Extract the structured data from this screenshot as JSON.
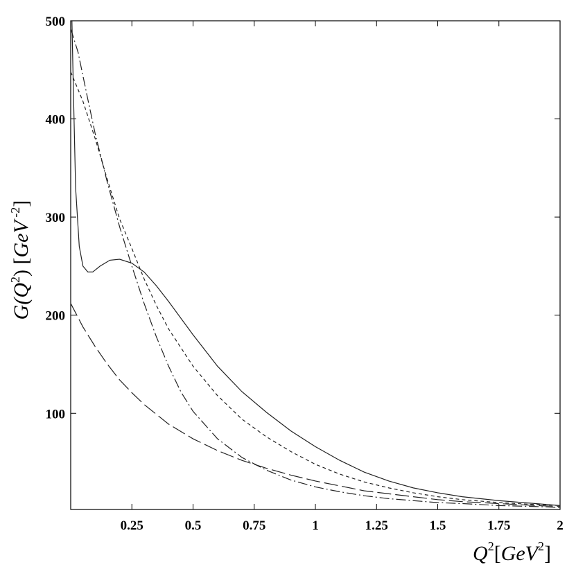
{
  "chart_data": {
    "type": "line",
    "xlabel": "Q^2[GeV^2]",
    "ylabel": "G(Q^2) [GeV^-2]",
    "xlim": [
      0,
      2
    ],
    "ylim": [
      2,
      500
    ],
    "grid": false,
    "x_ticks": [
      0.25,
      0.5,
      0.75,
      1,
      1.25,
      1.5,
      1.75,
      2
    ],
    "x_tick_labels": [
      "0.25",
      "0.5",
      "0.75",
      "1",
      "1.25",
      "1.5",
      "1.75",
      "2"
    ],
    "y_ticks": [
      100,
      200,
      300,
      400,
      500
    ],
    "y_tick_labels": [
      "100",
      "200",
      "300",
      "400",
      "500"
    ],
    "series": [
      {
        "style": "solid",
        "x": [
          0.005,
          0.01,
          0.02,
          0.035,
          0.05,
          0.07,
          0.09,
          0.12,
          0.16,
          0.2,
          0.25,
          0.3,
          0.35,
          0.4,
          0.5,
          0.6,
          0.7,
          0.8,
          0.9,
          1.0,
          1.1,
          1.2,
          1.3,
          1.4,
          1.5,
          1.6,
          1.75,
          1.9,
          2.0
        ],
        "y": [
          500,
          440,
          330,
          270,
          250,
          244,
          244,
          250,
          256,
          257,
          253,
          244,
          230,
          214,
          180,
          148,
          122,
          101,
          82,
          66,
          52,
          40,
          31,
          24,
          19,
          15,
          11,
          8,
          6
        ]
      },
      {
        "style": "short-dash",
        "x": [
          0.0,
          0.05,
          0.1,
          0.15,
          0.2,
          0.25,
          0.3,
          0.35,
          0.4,
          0.5,
          0.6,
          0.7,
          0.8,
          0.9,
          1.0,
          1.1,
          1.2,
          1.3,
          1.4,
          1.5,
          1.6,
          1.75,
          1.9,
          2.0
        ],
        "y": [
          448,
          418,
          380,
          338,
          298,
          268,
          237,
          210,
          186,
          148,
          118,
          94,
          76,
          61,
          48,
          38,
          30,
          24,
          19,
          15,
          12,
          9,
          7,
          6
        ]
      },
      {
        "style": "dash-dot",
        "x": [
          0.0,
          0.03,
          0.07,
          0.1,
          0.15,
          0.2,
          0.25,
          0.3,
          0.35,
          0.4,
          0.45,
          0.5,
          0.6,
          0.7,
          0.8,
          0.9,
          1.0,
          1.1,
          1.2,
          1.3,
          1.4,
          1.5,
          1.6,
          1.75,
          1.9,
          2.0
        ],
        "y": [
          492,
          468,
          420,
          385,
          335,
          290,
          250,
          212,
          178,
          148,
          122,
          102,
          74,
          55,
          42,
          32,
          25,
          20,
          16,
          13,
          11,
          9,
          8,
          6,
          5,
          4
        ]
      },
      {
        "style": "long-dash",
        "x": [
          0.0,
          0.05,
          0.1,
          0.15,
          0.2,
          0.25,
          0.3,
          0.35,
          0.4,
          0.5,
          0.6,
          0.7,
          0.8,
          0.9,
          1.0,
          1.1,
          1.2,
          1.3,
          1.4,
          1.5,
          1.6,
          1.75,
          1.9,
          2.0
        ],
        "y": [
          212,
          188,
          168,
          150,
          134,
          121,
          109,
          99,
          89,
          74,
          62,
          52,
          44,
          37,
          31,
          26,
          21,
          18,
          15,
          12,
          10,
          8,
          6,
          5
        ]
      }
    ]
  }
}
